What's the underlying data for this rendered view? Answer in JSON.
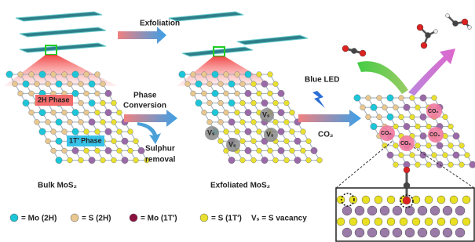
{
  "arrows": {
    "exfoliation": "Exfoliation",
    "phase_conversion": [
      "Phase",
      "Conversion"
    ],
    "sulphur_removal": [
      "Sulphur",
      "removal"
    ],
    "blue_led": "Blue LED",
    "co2_input": "CO₂"
  },
  "panels": [
    {
      "label": "Bulk MoS₂",
      "phase_labels": [
        "2H Phase",
        "1T′ Phase"
      ]
    },
    {
      "label": "Exfoliated MoS₂",
      "vacancy_labels": [
        "Vₛ",
        "Vₛ",
        "Vₛ",
        "Vₛ"
      ]
    },
    {
      "co2_labels": [
        "CO₂",
        "CO₂",
        "CO₂",
        "CO₂"
      ]
    }
  ],
  "legend": [
    "= Mo (2H)",
    "= S (2H)",
    "= Mo (1T′)",
    "= S (1T′)",
    "Vₛ = S vacancy"
  ]
}
